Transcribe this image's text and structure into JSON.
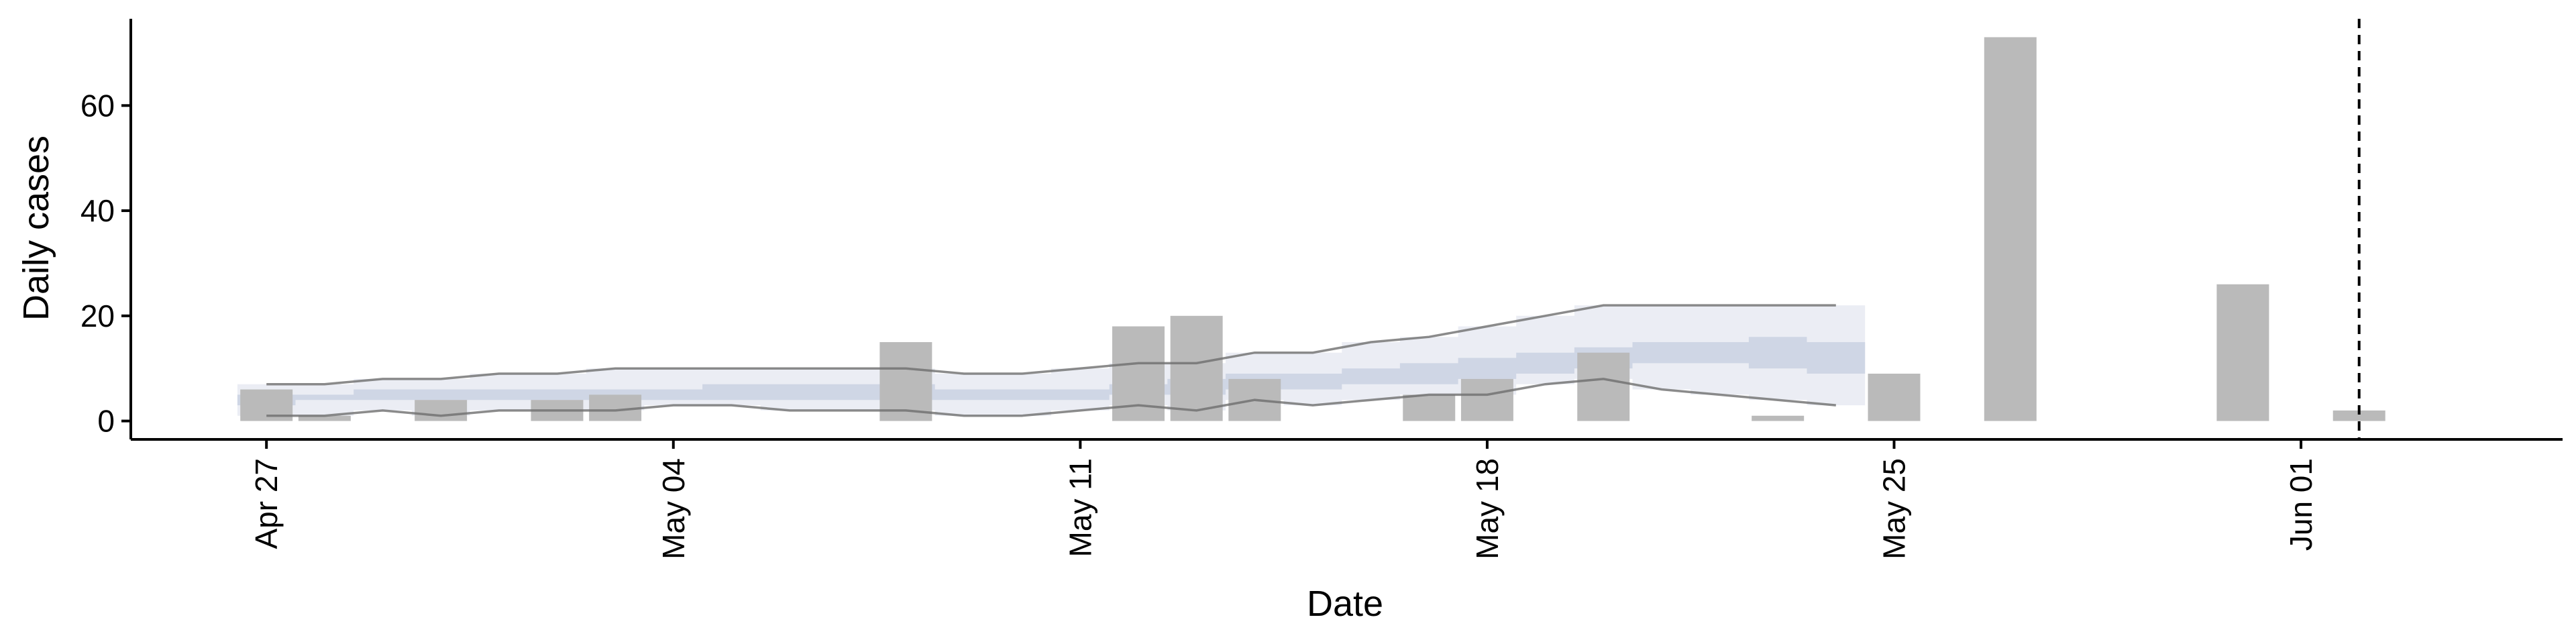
{
  "chart_data": {
    "type": "bar",
    "xlabel": "Date",
    "ylabel": "Daily cases",
    "xlim": [
      "2020-04-24T16:00",
      "2020-06-05T12:00"
    ],
    "ylim": [
      -3.5,
      76.5
    ],
    "x_ticks": [
      {
        "date": "2020-04-27",
        "label": "Apr 27"
      },
      {
        "date": "2020-05-04",
        "label": "May 04"
      },
      {
        "date": "2020-05-11",
        "label": "May 11"
      },
      {
        "date": "2020-05-18",
        "label": "May 18"
      },
      {
        "date": "2020-05-25",
        "label": "May 25"
      },
      {
        "date": "2020-06-01",
        "label": "Jun 01"
      }
    ],
    "y_ticks": [
      0,
      20,
      40,
      60
    ],
    "grid": false,
    "vline_date": "2020-06-02",
    "bars": [
      {
        "date": "2020-04-27",
        "value": 6
      },
      {
        "date": "2020-04-28",
        "value": 1
      },
      {
        "date": "2020-04-30",
        "value": 4
      },
      {
        "date": "2020-05-02",
        "value": 4
      },
      {
        "date": "2020-05-03",
        "value": 5
      },
      {
        "date": "2020-05-08",
        "value": 15
      },
      {
        "date": "2020-05-12",
        "value": 18
      },
      {
        "date": "2020-05-13",
        "value": 20
      },
      {
        "date": "2020-05-14",
        "value": 8
      },
      {
        "date": "2020-05-17",
        "value": 5
      },
      {
        "date": "2020-05-18",
        "value": 8
      },
      {
        "date": "2020-05-20",
        "value": 13
      },
      {
        "date": "2020-05-23",
        "value": 1
      },
      {
        "date": "2020-05-25",
        "value": 9
      },
      {
        "date": "2020-05-27",
        "value": 73
      },
      {
        "date": "2020-05-31",
        "value": 26
      },
      {
        "date": "2020-06-02",
        "value": 2
      }
    ],
    "estimate": {
      "dates": [
        "2020-04-27",
        "2020-04-28",
        "2020-04-29",
        "2020-04-30",
        "2020-05-01",
        "2020-05-02",
        "2020-05-03",
        "2020-05-04",
        "2020-05-05",
        "2020-05-06",
        "2020-05-07",
        "2020-05-08",
        "2020-05-09",
        "2020-05-10",
        "2020-05-11",
        "2020-05-12",
        "2020-05-13",
        "2020-05-14",
        "2020-05-15",
        "2020-05-16",
        "2020-05-17",
        "2020-05-18",
        "2020-05-19",
        "2020-05-20",
        "2020-05-21",
        "2020-05-22",
        "2020-05-23",
        "2020-05-24"
      ],
      "outer_lower": [
        1,
        1,
        2,
        1,
        2,
        2,
        2,
        3,
        3,
        2,
        2,
        2,
        1,
        1,
        2,
        3,
        2,
        4,
        3,
        4,
        5,
        5,
        7,
        8,
        6,
        5,
        4,
        3
      ],
      "outer_upper": [
        7,
        7,
        8,
        8,
        9,
        9,
        10,
        10,
        10,
        10,
        10,
        10,
        9,
        9,
        10,
        11,
        11,
        13,
        13,
        15,
        16,
        18,
        20,
        22,
        22,
        22,
        22,
        22
      ],
      "inner_lower": [
        3,
        4,
        4,
        4,
        4,
        4,
        4,
        4,
        4,
        4,
        4,
        4,
        4,
        4,
        4,
        5,
        5,
        6,
        6,
        7,
        7,
        8,
        9,
        10,
        11,
        11,
        10,
        9
      ],
      "inner_upper": [
        5,
        5,
        6,
        6,
        6,
        6,
        6,
        6,
        7,
        7,
        7,
        7,
        6,
        6,
        6,
        7,
        8,
        9,
        9,
        10,
        11,
        12,
        13,
        14,
        15,
        15,
        16,
        15
      ]
    },
    "colors": {
      "bar": "#bababa",
      "outer_band": "#e8eaf2",
      "inner_band": "#ccd3e3",
      "outer_line": "#6e6e6e",
      "vline": "#000000"
    }
  }
}
